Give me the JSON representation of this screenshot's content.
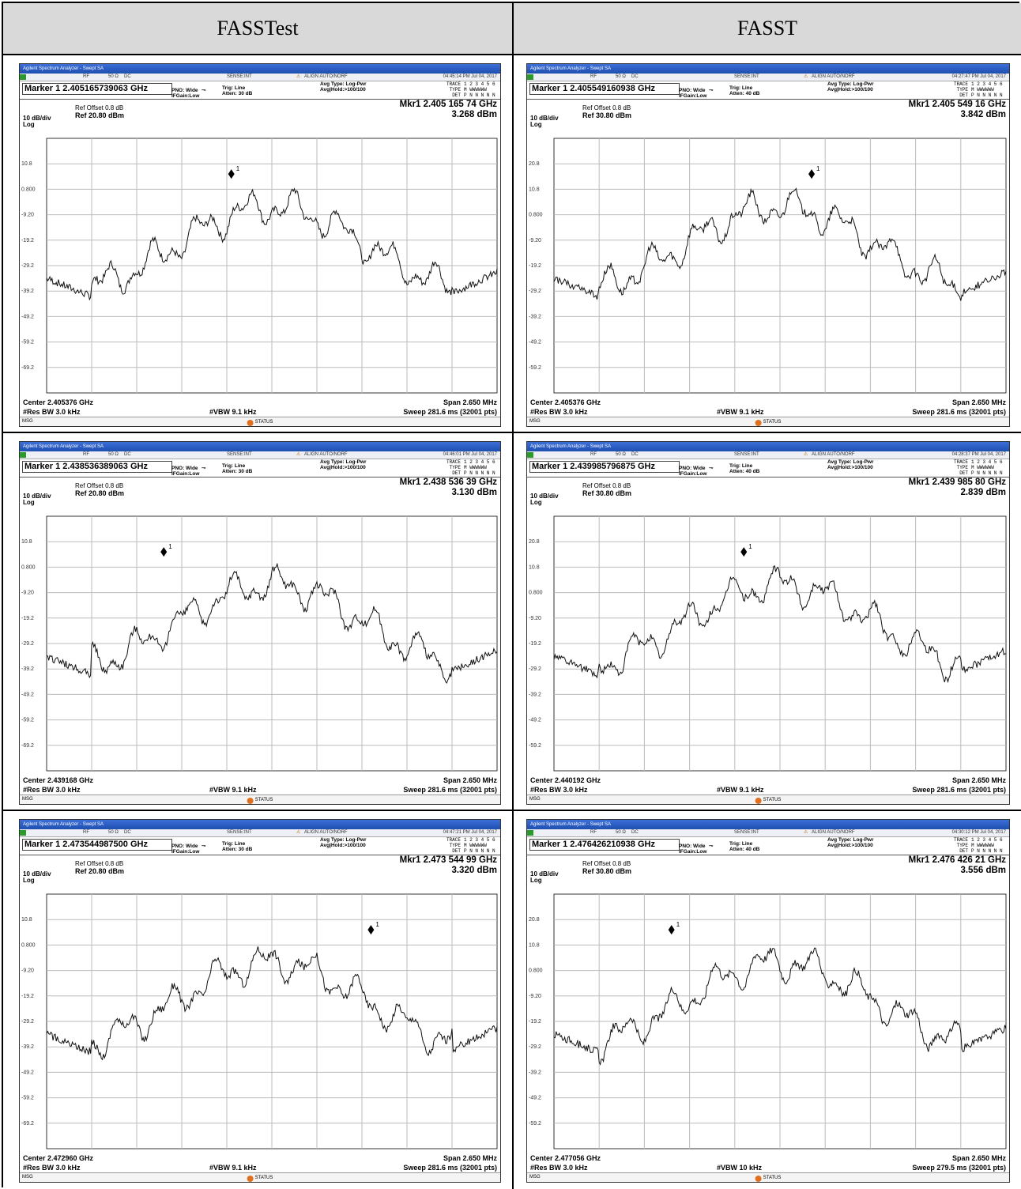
{
  "headers": {
    "left": "FASSTest",
    "right": "FASST"
  },
  "common": {
    "title_bar": "Agilent Spectrum Analyzer - Swept SA",
    "status_row": {
      "lxi": "LXI",
      "rf": "RF",
      "ohm": "50 Ω",
      "dc": "DC",
      "sense": "SENSE:INT",
      "align": "ALIGN AUTO/NORF"
    },
    "avg_type": "Avg Type: Log-Pwr",
    "avg_hold": "Avg|Hold:>100/100",
    "pno": "PNO: Wide",
    "ifgain": "IFGain:Low",
    "trig": "Trig: Line",
    "trace_label": "TRACE",
    "trace_nums": "1 2 3 4 5 6",
    "type_label": "TYPE",
    "type_val": "M WWWWWW",
    "det_label": "DET",
    "det_val": "P N N N N N",
    "ref_offset": "Ref Offset 0.8 dB",
    "scale": "10 dB/div",
    "log": "Log",
    "res_bw": "#Res BW 3.0 kHz",
    "span": "Span 2.650 MHz",
    "msg": "MSG",
    "status": "STATUS",
    "marker_num": "1"
  },
  "panels": [
    {
      "id": "r1l",
      "time": "04:45:14 PM Jul 04, 2017",
      "marker": "Marker 1 2.405165739063 GHz",
      "atten": "Atten: 30 dB",
      "mkr1": "Mkr1 2.405 165 74 GHz",
      "mkr_val": "3.268 dBm",
      "ref": "Ref 20.80 dBm",
      "center": "Center 2.405376 GHz",
      "vbw": "#VBW 9.1 kHz",
      "sweep": "Sweep  281.6 ms (32001 pts)",
      "ylabels": [
        "10.8",
        "0.800",
        "-9.20",
        "-19.2",
        "-29.2",
        "-39.2",
        "-49.2",
        "-59.2",
        "-69.2"
      ],
      "marker_frac": 0.41
    },
    {
      "id": "r1r",
      "time": "04:27:47 PM Jul 04, 2017",
      "marker": "Marker 1 2.405549160938 GHz",
      "atten": "Atten: 40 dB",
      "mkr1": "Mkr1 2.405 549 16 GHz",
      "mkr_val": "3.842 dBm",
      "ref": "Ref 30.80 dBm",
      "center": "Center 2.405376 GHz",
      "vbw": "#VBW 9.1 kHz",
      "sweep": "Sweep  281.6 ms (32001 pts)",
      "ylabels": [
        "20.8",
        "10.8",
        "0.800",
        "-9.20",
        "-19.2",
        "-29.2",
        "-39.2",
        "-49.2",
        "-59.2"
      ],
      "marker_frac": 0.57
    },
    {
      "id": "r2l",
      "time": "04:46:01 PM Jul 04, 2017",
      "marker": "Marker 1 2.438536389063 GHz",
      "atten": "Atten: 30 dB",
      "mkr1": "Mkr1 2.438 536 39 GHz",
      "mkr_val": "3.130 dBm",
      "ref": "Ref 20.80 dBm",
      "center": "Center 2.439168 GHz",
      "vbw": "#VBW 9.1 kHz",
      "sweep": "Sweep  281.6 ms (32001 pts)",
      "ylabels": [
        "10.8",
        "0.800",
        "-9.20",
        "-19.2",
        "-29.2",
        "-39.2",
        "-49.2",
        "-59.2",
        "-69.2"
      ],
      "marker_frac": 0.26
    },
    {
      "id": "r2r",
      "time": "04:28:37 PM Jul 04, 2017",
      "marker": "Marker 1 2.439985796875 GHz",
      "atten": "Atten: 40 dB",
      "mkr1": "Mkr1 2.439 985 80 GHz",
      "mkr_val": "2.839 dBm",
      "ref": "Ref 30.80 dBm",
      "center": "Center 2.440192 GHz",
      "vbw": "#VBW 9.1 kHz",
      "sweep": "Sweep  281.6 ms (32001 pts)",
      "ylabels": [
        "20.8",
        "10.8",
        "0.800",
        "-9.20",
        "-19.2",
        "-29.2",
        "-39.2",
        "-49.2",
        "-59.2"
      ],
      "marker_frac": 0.42
    },
    {
      "id": "r3l",
      "time": "04:47:21 PM Jul 04, 2017",
      "marker": "Marker 1 2.473544987500 GHz",
      "atten": "Atten: 30 dB",
      "mkr1": "Mkr1 2.473 544 99 GHz",
      "mkr_val": "3.320 dBm",
      "ref": "Ref 20.80 dBm",
      "center": "Center 2.472960 GHz",
      "vbw": "#VBW 9.1 kHz",
      "sweep": "Sweep  281.6 ms (32001 pts)",
      "ylabels": [
        "10.8",
        "0.800",
        "-9.20",
        "-19.2",
        "-29.2",
        "-39.2",
        "-49.2",
        "-59.2",
        "-69.2"
      ],
      "marker_frac": 0.72
    },
    {
      "id": "r3r",
      "time": "04:30:12 PM Jul 04, 2017",
      "marker": "Marker 1 2.476426210938 GHz",
      "atten": "Atten: 40 dB",
      "mkr1": "Mkr1 2.476 426 21 GHz",
      "mkr_val": "3.556 dBm",
      "ref": "Ref 30.80 dBm",
      "center": "Center 2.477056 GHz",
      "vbw": "#VBW 10 kHz",
      "sweep": "Sweep  279.5 ms (32001 pts)",
      "ylabels": [
        "20.8",
        "10.8",
        "0.800",
        "-9.20",
        "-19.2",
        "-29.2",
        "-39.2",
        "-49.2",
        "-59.2"
      ],
      "marker_frac": 0.26
    }
  ]
}
